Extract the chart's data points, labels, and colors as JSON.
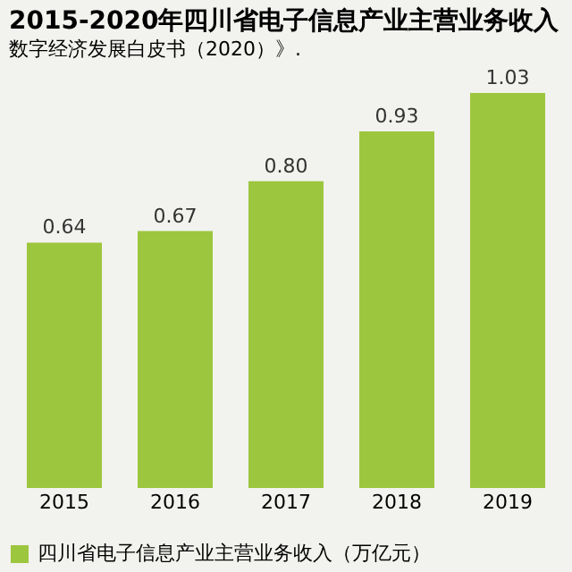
{
  "chart_data": {
    "type": "bar",
    "title": "2015-2020年四川省电子信息产业主营业务收入",
    "categories": [
      "2015",
      "2016",
      "2017",
      "2018",
      "2019"
    ],
    "series": [
      {
        "name": "四川省电子信息产业主营业务收入（万亿元）",
        "color": "#9dc63f",
        "values": [
          0.64,
          0.67,
          0.8,
          0.93,
          1.03
        ],
        "value_labels": [
          "0.64",
          "0.67",
          "0.80",
          "0.93",
          "1.03"
        ]
      }
    ],
    "legend": "bottom",
    "grid": false,
    "annotations": [
      "数字经济发展白皮书（2020）》."
    ]
  }
}
